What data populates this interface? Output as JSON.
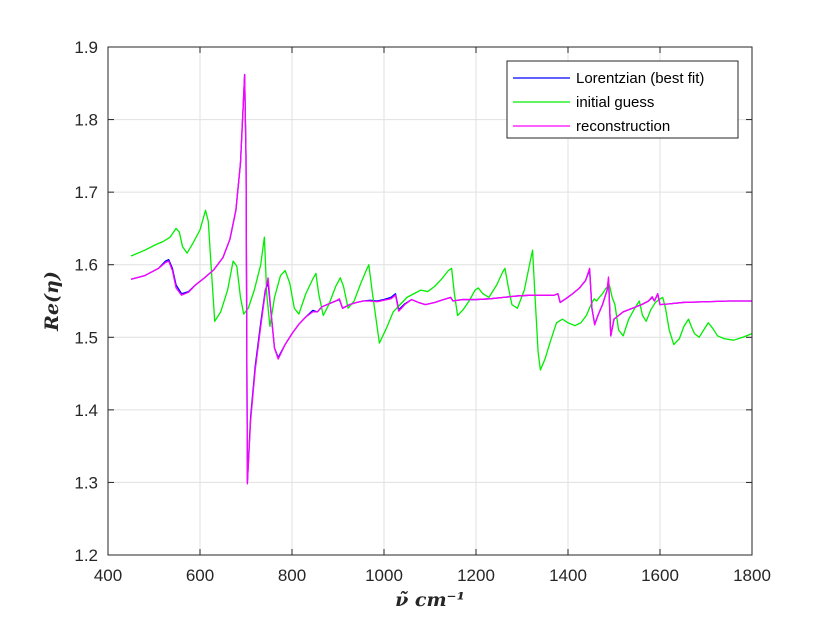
{
  "chart_data": {
    "type": "line",
    "xlabel": "ν̃ cm⁻¹",
    "ylabel": "Re(η)",
    "xlim": [
      400,
      1800
    ],
    "ylim": [
      1.2,
      1.9
    ],
    "xticks": [
      400,
      600,
      800,
      1000,
      1200,
      1400,
      1600,
      1800
    ],
    "yticks": [
      1.2,
      1.3,
      1.4,
      1.5,
      1.6,
      1.7,
      1.8,
      1.9
    ],
    "grid": true,
    "legend_position": "top-right",
    "series": [
      {
        "name": "Lorentzian (best fit)",
        "color": "#0000ff",
        "points": [
          [
            450,
            1.58
          ],
          [
            480,
            1.585
          ],
          [
            510,
            1.595
          ],
          [
            525,
            1.605
          ],
          [
            532,
            1.607
          ],
          [
            540,
            1.595
          ],
          [
            548,
            1.572
          ],
          [
            560,
            1.56
          ],
          [
            575,
            1.563
          ],
          [
            590,
            1.572
          ],
          [
            610,
            1.582
          ],
          [
            630,
            1.593
          ],
          [
            650,
            1.61
          ],
          [
            665,
            1.635
          ],
          [
            678,
            1.675
          ],
          [
            688,
            1.74
          ],
          [
            694,
            1.82
          ],
          [
            697,
            1.862
          ],
          [
            700,
            1.75
          ],
          [
            703,
            1.3
          ],
          [
            710,
            1.39
          ],
          [
            720,
            1.46
          ],
          [
            732,
            1.52
          ],
          [
            742,
            1.565
          ],
          [
            748,
            1.575
          ],
          [
            755,
            1.53
          ],
          [
            762,
            1.485
          ],
          [
            770,
            1.472
          ],
          [
            785,
            1.49
          ],
          [
            800,
            1.505
          ],
          [
            815,
            1.518
          ],
          [
            830,
            1.528
          ],
          [
            845,
            1.537
          ],
          [
            855,
            1.535
          ],
          [
            865,
            1.542
          ],
          [
            880,
            1.546
          ],
          [
            895,
            1.55
          ],
          [
            903,
            1.552
          ],
          [
            910,
            1.54
          ],
          [
            925,
            1.545
          ],
          [
            940,
            1.548
          ],
          [
            955,
            1.55
          ],
          [
            970,
            1.551
          ],
          [
            985,
            1.55
          ],
          [
            1000,
            1.552
          ],
          [
            1015,
            1.555
          ],
          [
            1025,
            1.56
          ],
          [
            1032,
            1.538
          ],
          [
            1045,
            1.546
          ],
          [
            1060,
            1.552
          ],
          [
            1075,
            1.548
          ],
          [
            1090,
            1.545
          ],
          [
            1110,
            1.548
          ],
          [
            1130,
            1.552
          ],
          [
            1145,
            1.555
          ],
          [
            1150,
            1.55
          ],
          [
            1170,
            1.552
          ],
          [
            1200,
            1.552
          ],
          [
            1230,
            1.553
          ],
          [
            1260,
            1.555
          ],
          [
            1290,
            1.557
          ],
          [
            1320,
            1.558
          ],
          [
            1350,
            1.558
          ],
          [
            1370,
            1.558
          ],
          [
            1378,
            1.56
          ],
          [
            1383,
            1.548
          ],
          [
            1395,
            1.553
          ],
          [
            1410,
            1.56
          ],
          [
            1425,
            1.568
          ],
          [
            1438,
            1.578
          ],
          [
            1447,
            1.593
          ],
          [
            1452,
            1.54
          ],
          [
            1458,
            1.518
          ],
          [
            1465,
            1.53
          ],
          [
            1475,
            1.545
          ],
          [
            1485,
            1.565
          ],
          [
            1488,
            1.58
          ],
          [
            1493,
            1.502
          ],
          [
            1500,
            1.525
          ],
          [
            1520,
            1.535
          ],
          [
            1540,
            1.54
          ],
          [
            1560,
            1.545
          ],
          [
            1575,
            1.55
          ],
          [
            1583,
            1.555
          ],
          [
            1588,
            1.55
          ],
          [
            1595,
            1.56
          ],
          [
            1600,
            1.545
          ],
          [
            1620,
            1.546
          ],
          [
            1650,
            1.548
          ],
          [
            1700,
            1.549
          ],
          [
            1750,
            1.55
          ],
          [
            1800,
            1.55
          ]
        ]
      },
      {
        "name": "initial guess",
        "color": "#00ee00",
        "points": [
          [
            450,
            1.612
          ],
          [
            480,
            1.62
          ],
          [
            505,
            1.628
          ],
          [
            520,
            1.632
          ],
          [
            535,
            1.638
          ],
          [
            548,
            1.65
          ],
          [
            555,
            1.645
          ],
          [
            562,
            1.625
          ],
          [
            572,
            1.616
          ],
          [
            585,
            1.63
          ],
          [
            600,
            1.648
          ],
          [
            612,
            1.675
          ],
          [
            618,
            1.66
          ],
          [
            625,
            1.59
          ],
          [
            632,
            1.522
          ],
          [
            645,
            1.535
          ],
          [
            660,
            1.565
          ],
          [
            672,
            1.605
          ],
          [
            680,
            1.598
          ],
          [
            688,
            1.555
          ],
          [
            695,
            1.532
          ],
          [
            705,
            1.54
          ],
          [
            718,
            1.565
          ],
          [
            732,
            1.6
          ],
          [
            740,
            1.638
          ],
          [
            745,
            1.56
          ],
          [
            752,
            1.515
          ],
          [
            762,
            1.555
          ],
          [
            775,
            1.585
          ],
          [
            785,
            1.592
          ],
          [
            795,
            1.575
          ],
          [
            805,
            1.54
          ],
          [
            815,
            1.532
          ],
          [
            830,
            1.56
          ],
          [
            845,
            1.58
          ],
          [
            852,
            1.588
          ],
          [
            858,
            1.56
          ],
          [
            868,
            1.53
          ],
          [
            880,
            1.545
          ],
          [
            895,
            1.57
          ],
          [
            905,
            1.582
          ],
          [
            912,
            1.57
          ],
          [
            922,
            1.54
          ],
          [
            935,
            1.55
          ],
          [
            950,
            1.575
          ],
          [
            962,
            1.593
          ],
          [
            967,
            1.6
          ],
          [
            975,
            1.56
          ],
          [
            990,
            1.492
          ],
          [
            1005,
            1.512
          ],
          [
            1020,
            1.535
          ],
          [
            1035,
            1.545
          ],
          [
            1050,
            1.555
          ],
          [
            1065,
            1.56
          ],
          [
            1080,
            1.565
          ],
          [
            1095,
            1.563
          ],
          [
            1110,
            1.57
          ],
          [
            1125,
            1.58
          ],
          [
            1140,
            1.592
          ],
          [
            1147,
            1.595
          ],
          [
            1153,
            1.56
          ],
          [
            1160,
            1.53
          ],
          [
            1172,
            1.538
          ],
          [
            1185,
            1.55
          ],
          [
            1198,
            1.565
          ],
          [
            1205,
            1.568
          ],
          [
            1215,
            1.56
          ],
          [
            1228,
            1.555
          ],
          [
            1245,
            1.572
          ],
          [
            1258,
            1.59
          ],
          [
            1263,
            1.595
          ],
          [
            1270,
            1.57
          ],
          [
            1278,
            1.545
          ],
          [
            1290,
            1.54
          ],
          [
            1305,
            1.565
          ],
          [
            1318,
            1.605
          ],
          [
            1323,
            1.62
          ],
          [
            1328,
            1.56
          ],
          [
            1335,
            1.48
          ],
          [
            1340,
            1.455
          ],
          [
            1350,
            1.47
          ],
          [
            1362,
            1.495
          ],
          [
            1375,
            1.52
          ],
          [
            1388,
            1.525
          ],
          [
            1400,
            1.52
          ],
          [
            1415,
            1.516
          ],
          [
            1428,
            1.52
          ],
          [
            1440,
            1.53
          ],
          [
            1450,
            1.545
          ],
          [
            1457,
            1.553
          ],
          [
            1462,
            1.55
          ],
          [
            1468,
            1.555
          ],
          [
            1475,
            1.56
          ],
          [
            1483,
            1.568
          ],
          [
            1490,
            1.572
          ],
          [
            1496,
            1.555
          ],
          [
            1502,
            1.545
          ],
          [
            1510,
            1.51
          ],
          [
            1520,
            1.502
          ],
          [
            1532,
            1.525
          ],
          [
            1545,
            1.54
          ],
          [
            1555,
            1.55
          ],
          [
            1562,
            1.53
          ],
          [
            1570,
            1.522
          ],
          [
            1580,
            1.538
          ],
          [
            1590,
            1.548
          ],
          [
            1598,
            1.552
          ],
          [
            1606,
            1.555
          ],
          [
            1612,
            1.54
          ],
          [
            1620,
            1.51
          ],
          [
            1630,
            1.49
          ],
          [
            1642,
            1.498
          ],
          [
            1652,
            1.515
          ],
          [
            1662,
            1.525
          ],
          [
            1668,
            1.515
          ],
          [
            1675,
            1.505
          ],
          [
            1685,
            1.5
          ],
          [
            1695,
            1.51
          ],
          [
            1705,
            1.52
          ],
          [
            1715,
            1.512
          ],
          [
            1725,
            1.502
          ],
          [
            1740,
            1.498
          ],
          [
            1760,
            1.496
          ],
          [
            1780,
            1.5
          ],
          [
            1800,
            1.505
          ]
        ]
      },
      {
        "name": "reconstruction",
        "color": "#ff00ff",
        "points": [
          [
            450,
            1.58
          ],
          [
            480,
            1.585
          ],
          [
            510,
            1.595
          ],
          [
            525,
            1.603
          ],
          [
            532,
            1.605
          ],
          [
            540,
            1.592
          ],
          [
            548,
            1.568
          ],
          [
            560,
            1.558
          ],
          [
            575,
            1.562
          ],
          [
            590,
            1.572
          ],
          [
            610,
            1.582
          ],
          [
            630,
            1.593
          ],
          [
            650,
            1.61
          ],
          [
            665,
            1.635
          ],
          [
            678,
            1.675
          ],
          [
            688,
            1.74
          ],
          [
            694,
            1.82
          ],
          [
            697,
            1.862
          ],
          [
            700,
            1.75
          ],
          [
            703,
            1.298
          ],
          [
            710,
            1.385
          ],
          [
            720,
            1.455
          ],
          [
            732,
            1.515
          ],
          [
            742,
            1.562
          ],
          [
            748,
            1.582
          ],
          [
            755,
            1.53
          ],
          [
            762,
            1.485
          ],
          [
            770,
            1.47
          ],
          [
            785,
            1.49
          ],
          [
            800,
            1.505
          ],
          [
            815,
            1.518
          ],
          [
            830,
            1.528
          ],
          [
            845,
            1.535
          ],
          [
            855,
            1.535
          ],
          [
            865,
            1.542
          ],
          [
            880,
            1.546
          ],
          [
            895,
            1.55
          ],
          [
            903,
            1.553
          ],
          [
            910,
            1.54
          ],
          [
            925,
            1.545
          ],
          [
            940,
            1.548
          ],
          [
            955,
            1.55
          ],
          [
            970,
            1.55
          ],
          [
            985,
            1.549
          ],
          [
            1000,
            1.551
          ],
          [
            1015,
            1.553
          ],
          [
            1025,
            1.558
          ],
          [
            1032,
            1.536
          ],
          [
            1045,
            1.545
          ],
          [
            1060,
            1.552
          ],
          [
            1075,
            1.548
          ],
          [
            1090,
            1.545
          ],
          [
            1110,
            1.548
          ],
          [
            1130,
            1.552
          ],
          [
            1145,
            1.555
          ],
          [
            1150,
            1.55
          ],
          [
            1170,
            1.552
          ],
          [
            1200,
            1.552
          ],
          [
            1230,
            1.553
          ],
          [
            1260,
            1.555
          ],
          [
            1290,
            1.557
          ],
          [
            1320,
            1.558
          ],
          [
            1350,
            1.558
          ],
          [
            1370,
            1.558
          ],
          [
            1378,
            1.56
          ],
          [
            1383,
            1.548
          ],
          [
            1395,
            1.553
          ],
          [
            1410,
            1.56
          ],
          [
            1425,
            1.568
          ],
          [
            1438,
            1.578
          ],
          [
            1447,
            1.595
          ],
          [
            1452,
            1.54
          ],
          [
            1458,
            1.517
          ],
          [
            1465,
            1.53
          ],
          [
            1475,
            1.545
          ],
          [
            1485,
            1.565
          ],
          [
            1488,
            1.583
          ],
          [
            1493,
            1.502
          ],
          [
            1500,
            1.525
          ],
          [
            1520,
            1.535
          ],
          [
            1540,
            1.54
          ],
          [
            1560,
            1.545
          ],
          [
            1575,
            1.55
          ],
          [
            1583,
            1.556
          ],
          [
            1588,
            1.55
          ],
          [
            1595,
            1.56
          ],
          [
            1600,
            1.545
          ],
          [
            1620,
            1.546
          ],
          [
            1650,
            1.548
          ],
          [
            1700,
            1.549
          ],
          [
            1750,
            1.55
          ],
          [
            1800,
            1.55
          ]
        ]
      }
    ]
  }
}
